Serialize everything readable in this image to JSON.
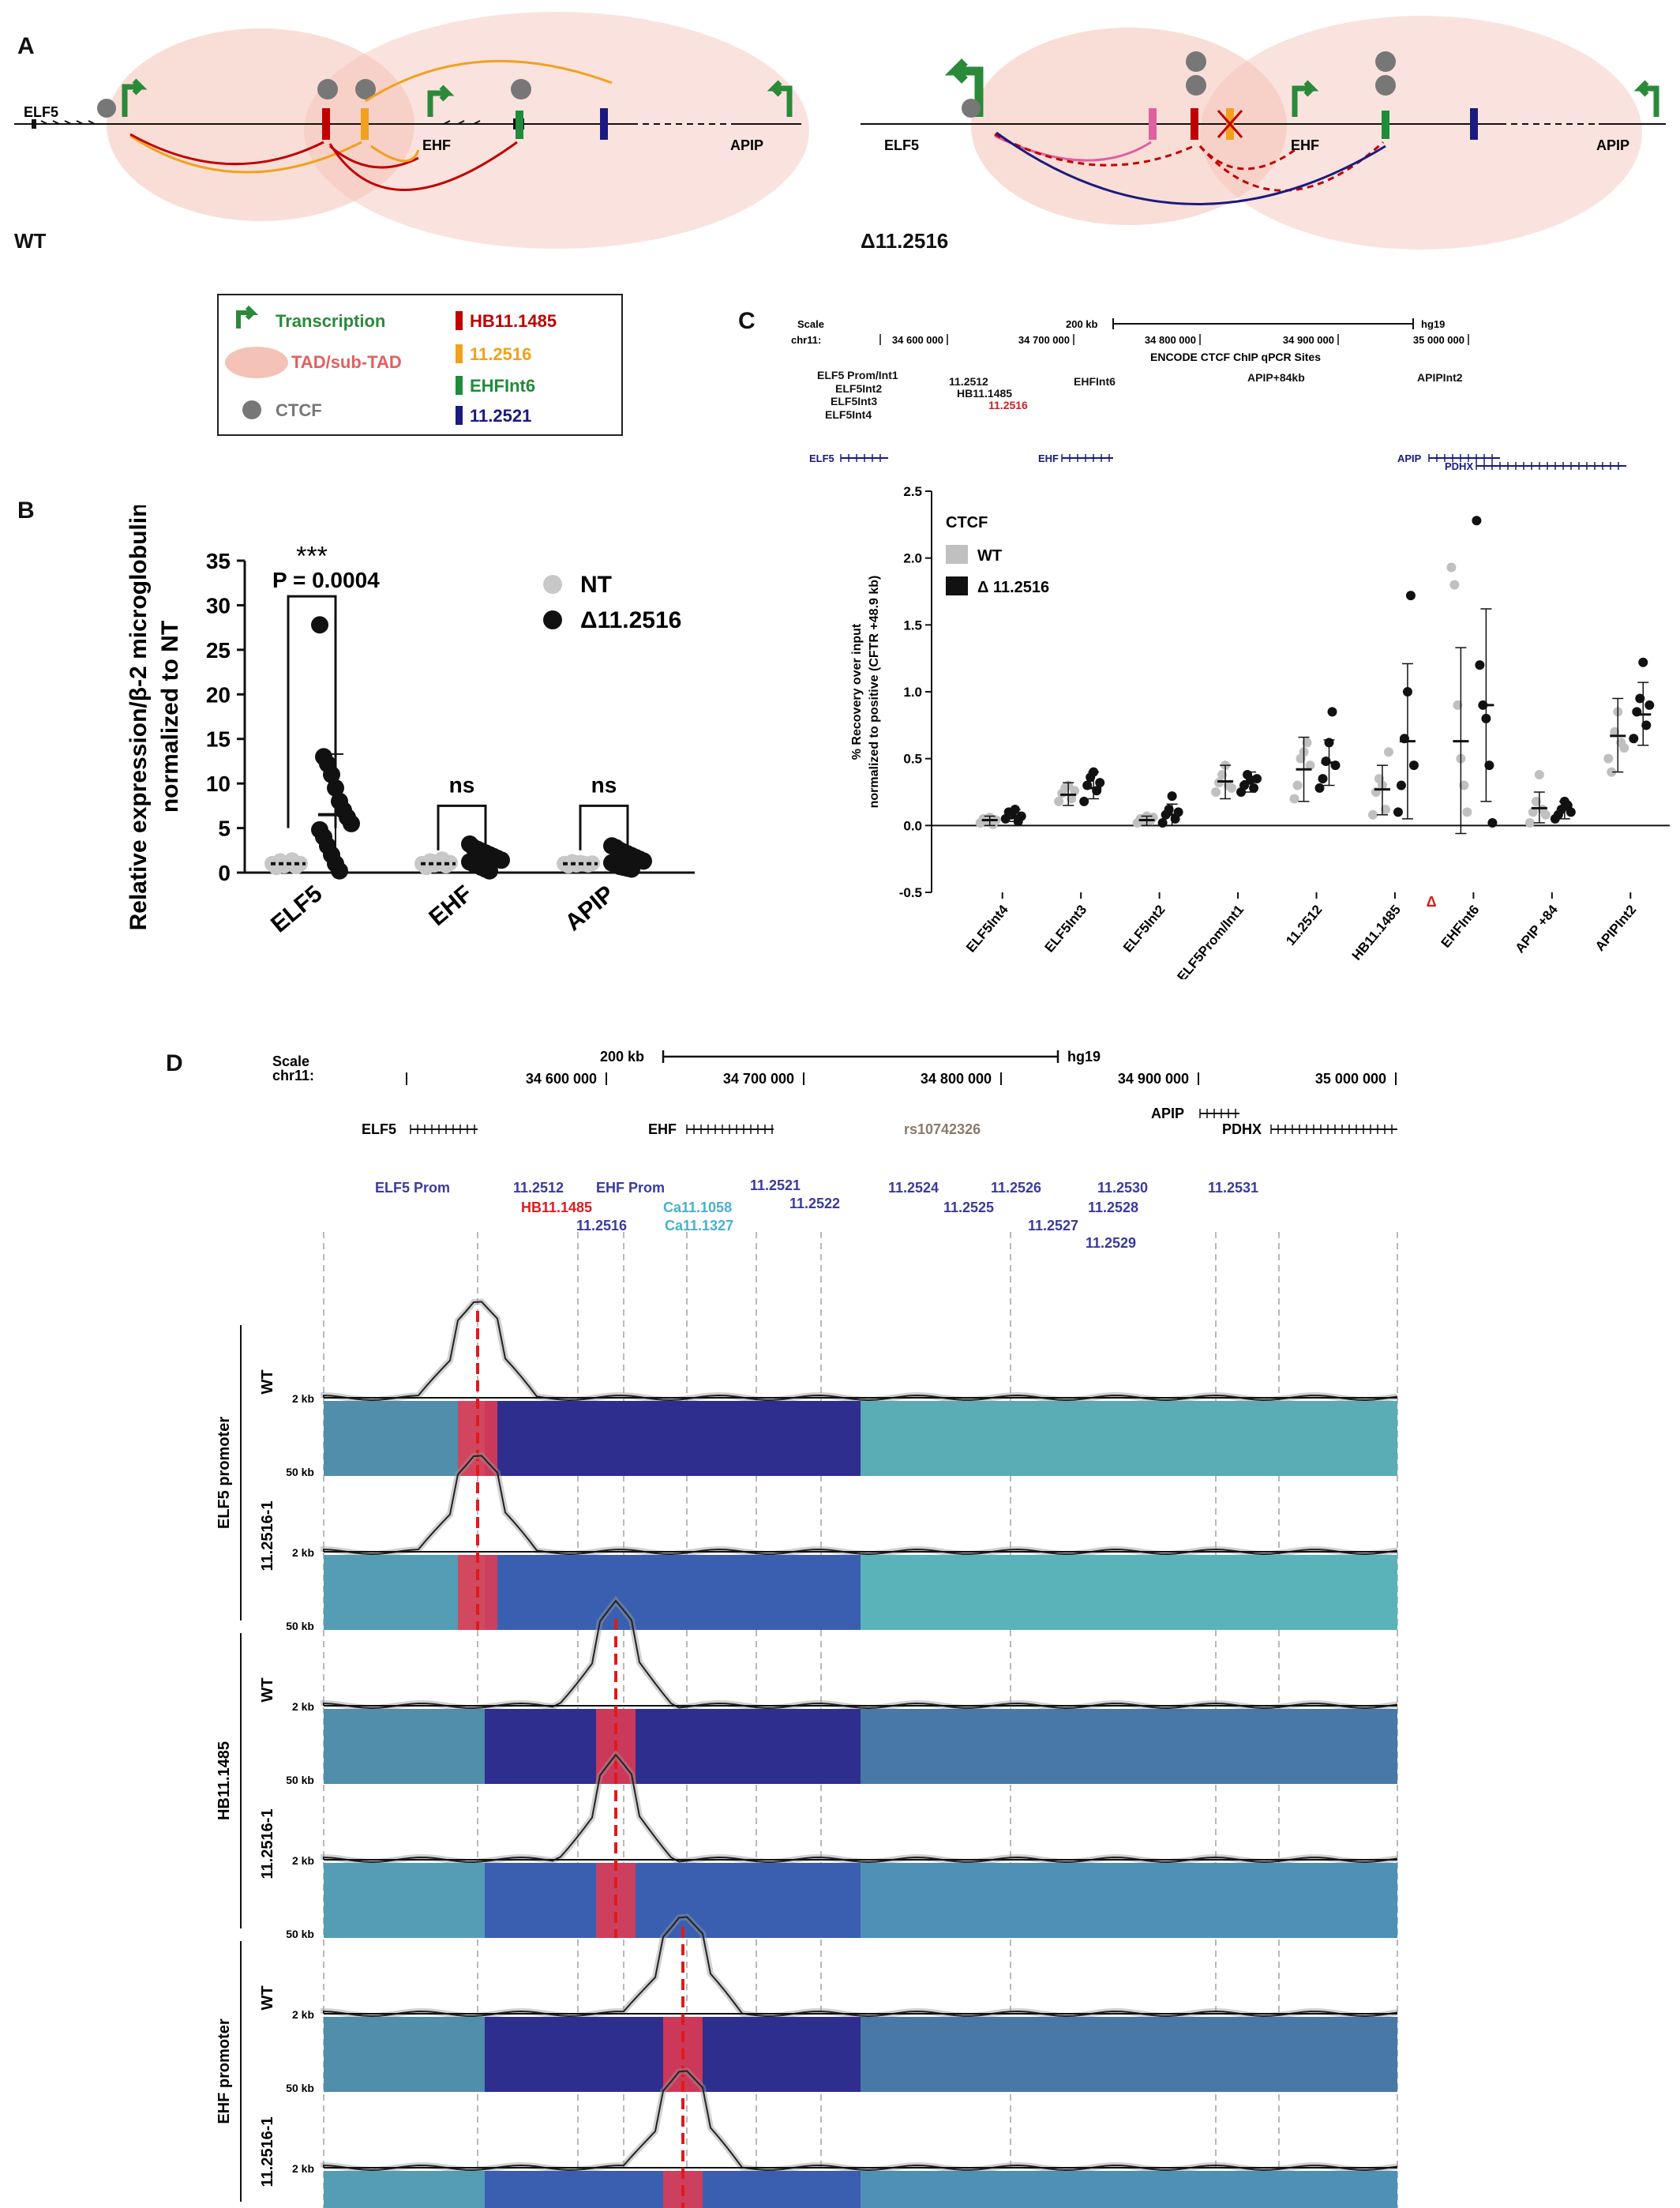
{
  "panel_labels": {
    "a": "A",
    "b": "B",
    "c": "C",
    "d": "D"
  },
  "panel_a": {
    "wt_label": "WT",
    "del_label": "Δ11.2516",
    "genes": {
      "elf5": "ELF5",
      "ehf": "EHF",
      "apip": "APIP"
    }
  },
  "legend": {
    "transcription": "Transcription",
    "tad": "TAD/sub-TAD",
    "ctcf": "CTCF",
    "hb": "HB11.1485",
    "s2516": "11.2516",
    "ehfint6": "EHFInt6",
    "s2521": "11.2521",
    "colors": {
      "hb": "#c00000",
      "s2516": "#f2a01e",
      "ehfint6": "#1e8c3a",
      "s2521": "#1a1a80",
      "transcription": "#2a8a3a",
      "tad": "#f4c2b6",
      "ctcf": "#777777"
    }
  },
  "chart_data": [
    {
      "type": "scatter",
      "panel": "B",
      "ylabel_line1": "Relative expression/β-2 microglobulin",
      "ylabel_line2": "normalized to NT",
      "categories": [
        "ELF5",
        "EHF",
        "APIP"
      ],
      "ylim": [
        0,
        35
      ],
      "yticks": [
        "0",
        "5",
        "10",
        "15",
        "20",
        "25",
        "30",
        "35"
      ],
      "legend": [
        "NT",
        "Δ11.2516"
      ],
      "annotations": {
        "stars": "***",
        "pvalue": "P = 0.0004",
        "ns1": "ns",
        "ns2": "ns"
      },
      "series": [
        {
          "name": "NT",
          "color": "#c8c8c8",
          "values": [
            [
              1.0,
              0.6,
              1.3,
              0.8,
              1.1,
              1.4,
              0.7,
              1.0
            ],
            [
              1.0,
              0.6,
              1.3,
              0.9,
              1.2,
              1.5,
              0.8,
              1.1
            ],
            [
              1.0,
              0.8,
              1.2,
              0.9,
              1.1,
              1.0,
              0.9,
              1.05
            ]
          ],
          "means": [
            1.0,
            1.0,
            1.0
          ]
        },
        {
          "name": "Δ11.2516",
          "color": "#111111",
          "values": [
            [
              27.8,
              13.0,
              12.2,
              11.0,
              9.5,
              8.0,
              7.0,
              6.2,
              5.5,
              4.8,
              4.0,
              3.0,
              2.0,
              1.0,
              0.2
            ],
            [
              3.2,
              2.8,
              2.6,
              2.4,
              2.2,
              2.0,
              1.8,
              1.6,
              1.4,
              1.2,
              1.0,
              0.8,
              0.6,
              0.4,
              0.2
            ],
            [
              3.0,
              2.8,
              2.5,
              2.3,
              2.1,
              1.9,
              1.7,
              1.5,
              1.3,
              1.1,
              0.9,
              0.7,
              0.6,
              0.5,
              0.4
            ]
          ],
          "means": [
            6.5,
            1.6,
            1.6
          ],
          "sd": [
            [
              0.2,
              13.3
            ],
            [
              0.6,
              2.6
            ],
            [
              0.7,
              2.5
            ]
          ]
        }
      ]
    },
    {
      "type": "scatter",
      "panel": "C",
      "ylabel_line1": "% Recovery over input",
      "ylabel_line2": "normalized to positive (CFTR +48.9 kb)",
      "categories": [
        "ELF5Int4",
        "ELF5Int3",
        "ELF5Int2",
        "ELF5Prom/Int1",
        "11.2512",
        "HB11.1485",
        "EHFInt6",
        "APIP +84",
        "APIPInt2"
      ],
      "delta_marker": "Δ",
      "ylim": [
        -0.5,
        2.5
      ],
      "yticks": [
        "-0.5",
        "0.0",
        "0.5",
        "1.0",
        "1.5",
        "2.0",
        "2.5"
      ],
      "legend_title": "CTCF",
      "legend": [
        "WT",
        "Δ 11.2516"
      ],
      "series": [
        {
          "name": "WT",
          "color": "#c0c0c0",
          "values": [
            [
              0.02,
              0.05,
              0.03,
              0.06,
              0.01,
              0.04
            ],
            [
              0.18,
              0.24,
              0.28,
              0.3,
              0.2,
              0.26
            ],
            [
              0.02,
              0.05,
              0.04,
              0.07,
              0.03,
              0.06
            ],
            [
              0.25,
              0.32,
              0.38,
              0.45,
              0.3,
              0.28
            ],
            [
              0.2,
              0.3,
              0.5,
              0.55,
              0.62,
              0.45
            ],
            [
              0.08,
              0.25,
              0.35,
              0.3,
              0.12,
              0.55
            ],
            [
              1.93,
              1.8,
              0.9,
              0.5,
              0.3,
              0.1
            ],
            [
              0.02,
              0.1,
              0.18,
              0.38,
              0.12,
              0.08
            ],
            [
              0.5,
              0.4,
              0.7,
              0.85,
              0.62,
              0.58
            ]
          ],
          "means": [
            0.04,
            0.23,
            0.04,
            0.33,
            0.42,
            0.27,
            0.63,
            0.13,
            0.67
          ],
          "sd": [
            [
              0.0,
              0.07
            ],
            [
              0.15,
              0.32
            ],
            [
              0.0,
              0.07
            ],
            [
              0.2,
              0.45
            ],
            [
              0.18,
              0.66
            ],
            [
              0.08,
              0.45
            ],
            [
              -0.06,
              1.33
            ],
            [
              0.02,
              0.25
            ],
            [
              0.4,
              0.95
            ]
          ]
        },
        {
          "name": "Δ 11.2516",
          "color": "#111111",
          "values": [
            [
              0.05,
              0.1,
              0.08,
              0.12,
              0.03,
              0.07
            ],
            [
              0.18,
              0.3,
              0.36,
              0.4,
              0.26,
              0.32
            ],
            [
              0.02,
              0.08,
              0.12,
              0.22,
              0.05,
              0.1
            ],
            [
              0.25,
              0.3,
              0.38,
              0.34,
              0.28,
              0.35
            ],
            [
              0.28,
              0.35,
              0.48,
              0.62,
              0.85,
              0.45
            ],
            [
              0.1,
              0.3,
              0.65,
              1.0,
              1.72,
              0.45
            ],
            [
              2.28,
              1.2,
              0.9,
              0.8,
              0.45,
              0.02
            ],
            [
              0.05,
              0.08,
              0.12,
              0.18,
              0.15,
              0.1
            ],
            [
              0.65,
              0.85,
              0.95,
              1.22,
              0.75,
              0.9
            ]
          ],
          "means": [
            0.07,
            0.28,
            0.08,
            0.33,
            0.47,
            0.63,
            0.9,
            0.12,
            0.83
          ],
          "sd": [
            [
              0.03,
              0.12
            ],
            [
              0.2,
              0.4
            ],
            [
              0.0,
              0.16
            ],
            [
              0.25,
              0.4
            ],
            [
              0.3,
              0.64
            ],
            [
              0.05,
              1.21
            ],
            [
              0.18,
              1.62
            ],
            [
              0.05,
              0.18
            ],
            [
              0.6,
              1.07
            ]
          ]
        }
      ]
    }
  ],
  "panel_c_track": {
    "scale": "Scale",
    "chrom": "chr11:",
    "scale_bar": "200 kb",
    "assembly": "hg19",
    "coords": [
      "34 600 000",
      "34 700 000",
      "34 800 000",
      "34 900 000",
      "35 000 000"
    ],
    "track_title": "ENCODE CTCF ChIP qPCR Sites",
    "sites": [
      "ELF5 Prom/Int1",
      "ELF5Int2",
      "ELF5Int3",
      "ELF5Int4",
      "11.2512",
      "HB11.1485",
      "11.2516",
      "EHFInt6",
      "APIP+84kb",
      "APIPInt2"
    ],
    "genes": [
      "ELF5",
      "EHF",
      "APIP",
      "PDHX"
    ]
  },
  "panel_d": {
    "scale": "Scale",
    "chrom": "chr11:",
    "scale_bar": "200 kb",
    "assembly": "hg19",
    "coords": [
      "34 600 000",
      "34 700 000",
      "34 800 000",
      "34 900 000",
      "35 000 000"
    ],
    "genes": [
      "ELF5",
      "EHF",
      "APIP",
      "PDHX"
    ],
    "snp": "rs10742326",
    "sites": [
      "ELF5 Prom",
      "11.2512",
      "HB11.1485",
      "11.2516",
      "EHF Prom",
      "Ca11.1058",
      "Ca11.1327",
      "11.2521",
      "11.2522",
      "11.2524",
      "11.2525",
      "11.2526",
      "11.2527",
      "11.2528",
      "11.2529",
      "11.2530",
      "11.2531"
    ],
    "groups": [
      "ELF5 promoter",
      "HB11.1485",
      "EHF promoter"
    ],
    "row_labels": [
      "WT",
      "11.2516-1",
      "WT",
      "11.2516-1",
      "WT",
      "11.2516-1"
    ],
    "axis_top": "2 kb",
    "axis_bottom": "50 kb"
  }
}
